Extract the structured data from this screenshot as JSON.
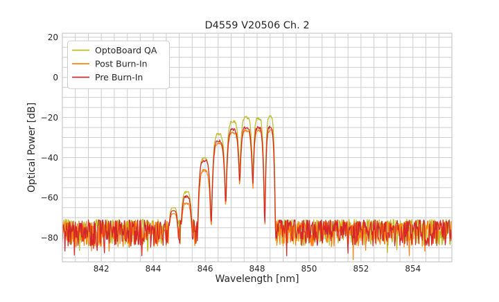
{
  "chart_data": {
    "type": "line",
    "title": "D4559 V20506 Ch. 2",
    "xlabel": "Wavelength [nm]",
    "ylabel": "Optical Power [dB]",
    "xlim": [
      840.5,
      855.5
    ],
    "ylim": [
      -92,
      22
    ],
    "x_ticks": [
      842,
      844,
      846,
      848,
      850,
      852,
      854
    ],
    "y_ticks": [
      20,
      0,
      -20,
      -40,
      -60,
      -80
    ],
    "x_minor_step_nm": 0.5,
    "y_minor_step_db": 5,
    "grid": true,
    "legend_position": "upper left",
    "sample_step_nm": 0.02,
    "noise": {
      "spread_db": 13,
      "spike_prob": 0.08,
      "spike_extra_db": 7,
      "min_db": -91.3,
      "left_band_nm": [
        840.5,
        844.6
      ],
      "right_band_nm": [
        848.7,
        855.5
      ]
    },
    "comb_peaks": {
      "wavelengths_nm": [
        844.78,
        845.28,
        845.97,
        846.52,
        847.07,
        847.58,
        848.05,
        848.5
      ],
      "widths_nm": [
        0.14,
        0.15,
        0.155,
        0.16,
        0.16,
        0.155,
        0.13,
        0.11
      ],
      "series": [
        {
          "name": "OptoBoard QA",
          "color": "#bcbd22",
          "peak_db": [
            -65.0,
            -57.5,
            -40.5,
            -28.5,
            -22.0,
            -20.0,
            -20.5,
            -19.5
          ],
          "noise_top_db": -70.8,
          "seed": 101
        },
        {
          "name": "Post Burn-In",
          "color": "#ff7f0e",
          "peak_db": [
            -68.0,
            -63.0,
            -46.5,
            -33.0,
            -27.5,
            -26.5,
            -26.5,
            -26.5
          ],
          "noise_top_db": -71.6,
          "seed": 202
        },
        {
          "name": "Pre Burn-In",
          "color": "#d62728",
          "peak_db": [
            -66.5,
            -59.5,
            -41.5,
            -31.5,
            -26.0,
            -25.0,
            -25.0,
            -25.0
          ],
          "noise_top_db": -71.1,
          "seed": 303
        }
      ]
    }
  },
  "colors": {
    "grid": "#cdcdcd",
    "spine": "#c8c8c8",
    "text": "#262626",
    "background": "#ffffff"
  }
}
